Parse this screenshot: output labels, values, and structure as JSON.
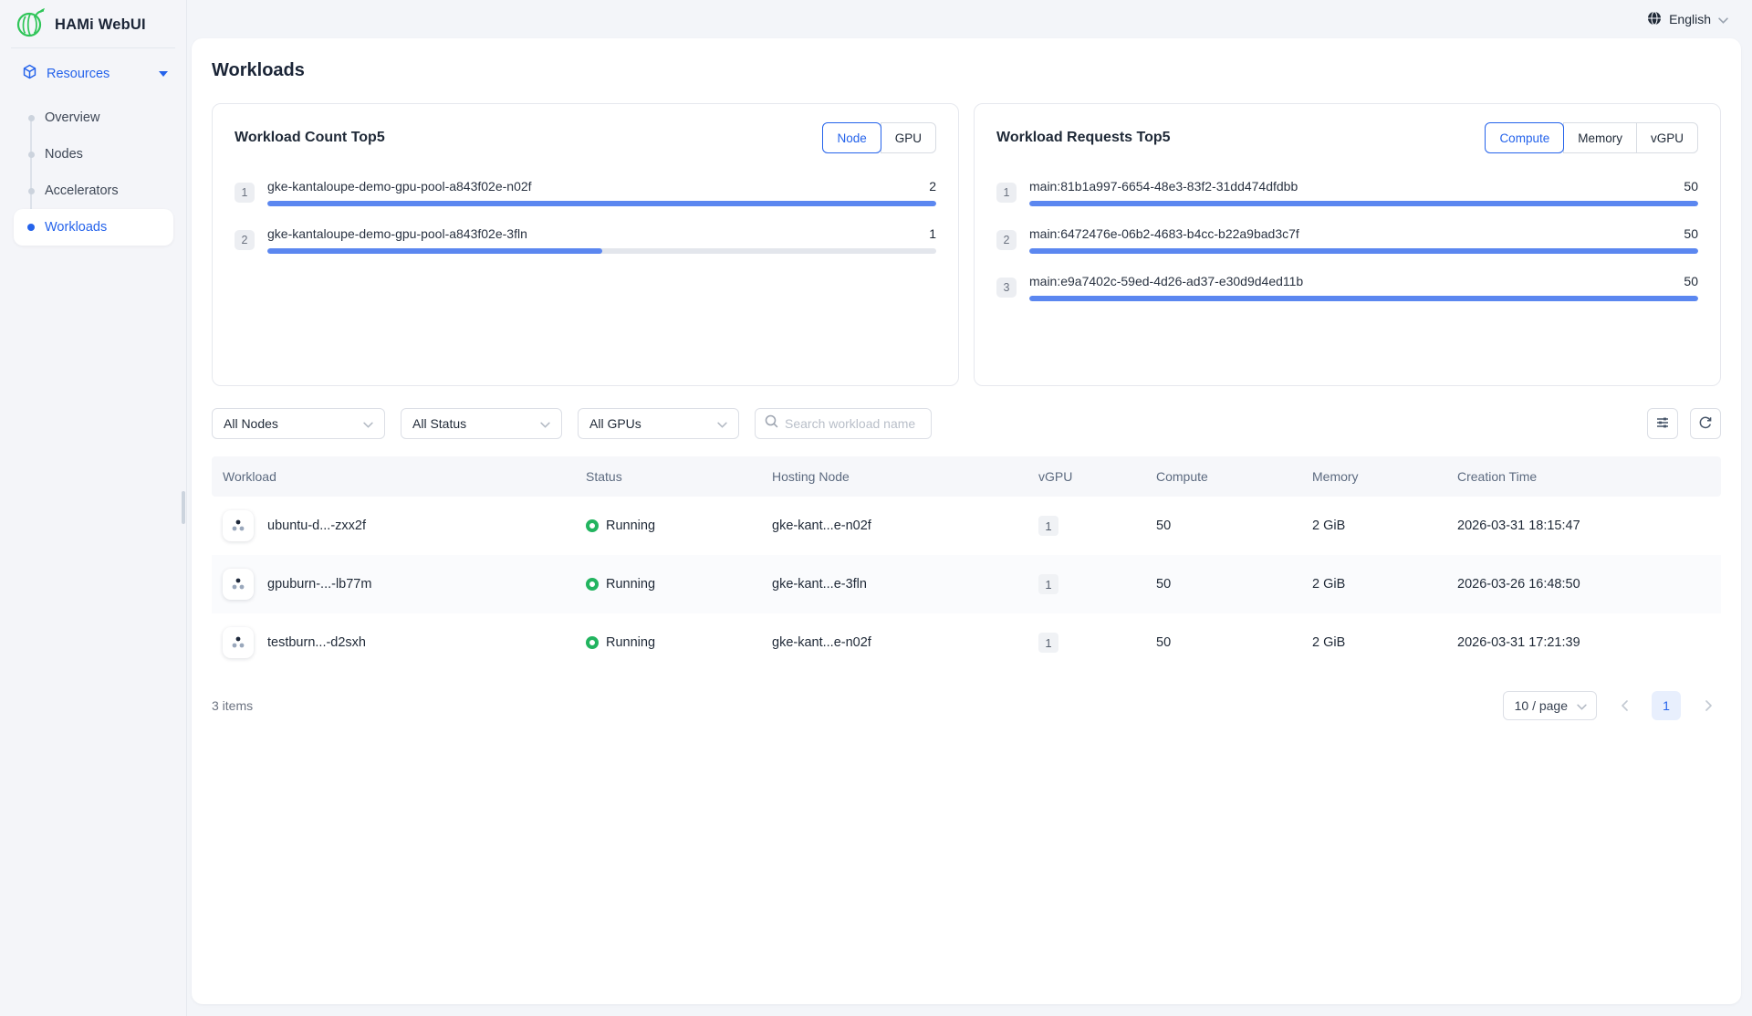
{
  "app": {
    "title": "HAMi WebUI"
  },
  "topbar": {
    "language": "English"
  },
  "sidebar": {
    "section_label": "Resources",
    "items": [
      {
        "label": "Overview"
      },
      {
        "label": "Nodes"
      },
      {
        "label": "Accelerators"
      },
      {
        "label": "Workloads"
      }
    ]
  },
  "page": {
    "title": "Workloads"
  },
  "cards": [
    {
      "title": "Workload Count Top5",
      "toggles": [
        "Node",
        "GPU"
      ],
      "active_toggle": "Node",
      "rows": [
        {
          "rank": "1",
          "label": "gke-kantaloupe-demo-gpu-pool-a843f02e-n02f",
          "value": "2",
          "percent": 100
        },
        {
          "rank": "2",
          "label": "gke-kantaloupe-demo-gpu-pool-a843f02e-3fln",
          "value": "1",
          "percent": 50
        }
      ]
    },
    {
      "title": "Workload Requests Top5",
      "toggles": [
        "Compute",
        "Memory",
        "vGPU"
      ],
      "active_toggle": "Compute",
      "rows": [
        {
          "rank": "1",
          "label": "main:81b1a997-6654-48e3-83f2-31dd474dfdbb",
          "value": "50",
          "percent": 100
        },
        {
          "rank": "2",
          "label": "main:6472476e-06b2-4683-b4cc-b22a9bad3c7f",
          "value": "50",
          "percent": 100
        },
        {
          "rank": "3",
          "label": "main:e9a7402c-59ed-4d26-ad37-e30d9d4ed11b",
          "value": "50",
          "percent": 100
        }
      ]
    }
  ],
  "filters": {
    "node": "All Nodes",
    "status": "All Status",
    "gpu": "All GPUs",
    "search_placeholder": "Search workload name"
  },
  "table": {
    "columns": [
      "Workload",
      "Status",
      "Hosting Node",
      "vGPU",
      "Compute",
      "Memory",
      "Creation Time"
    ],
    "rows": [
      {
        "workload": "ubuntu-d...-zxx2f",
        "status": "Running",
        "hosting_node": "gke-kant...e-n02f",
        "vgpu": "1",
        "compute": "50",
        "memory": "2 GiB",
        "creation_time": "2026-03-31 18:15:47"
      },
      {
        "workload": "gpuburn-...-lb77m",
        "status": "Running",
        "hosting_node": "gke-kant...e-3fln",
        "vgpu": "1",
        "compute": "50",
        "memory": "2 GiB",
        "creation_time": "2026-03-26 16:48:50"
      },
      {
        "workload": "testburn...-d2sxh",
        "status": "Running",
        "hosting_node": "gke-kant...e-n02f",
        "vgpu": "1",
        "compute": "50",
        "memory": "2 GiB",
        "creation_time": "2026-03-31 17:21:39"
      }
    ]
  },
  "footer": {
    "total": "3 items",
    "page_size": "10 / page",
    "current_page": "1"
  },
  "colors": {
    "accent_blue": "#2563eb",
    "bar_blue": "#5b87f0",
    "logo_green": "#2fc558",
    "running_green": "#22b45f"
  }
}
